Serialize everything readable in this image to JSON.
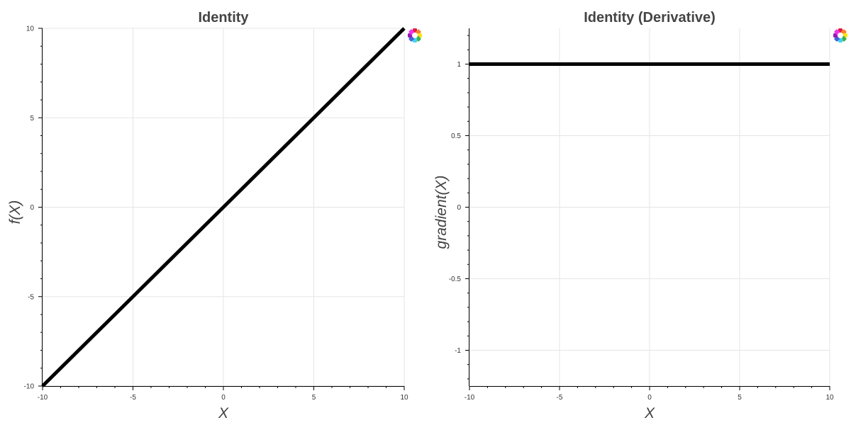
{
  "colors": {
    "series": "#000000",
    "grid": "#e5e5e5",
    "title": "#444444",
    "logo": [
      "#e6194b",
      "#f58231",
      "#ffe119",
      "#3cb44b",
      "#42d4f4",
      "#4363d8",
      "#911eb4",
      "#f032e6"
    ]
  },
  "toolbar_icon": "bokeh-logo-icon",
  "chart_data": [
    {
      "type": "line",
      "title": "Identity",
      "xlabel": "X",
      "ylabel": "f(X)",
      "xlim": [
        -10,
        10
      ],
      "ylim": [
        -10,
        10
      ],
      "x_ticks": [
        "-10",
        "-5",
        "0",
        "5",
        "10"
      ],
      "y_ticks": [
        "-10",
        "-5",
        "0",
        "5",
        "10"
      ],
      "x_tick_values": [
        -10,
        -5,
        0,
        5,
        10
      ],
      "y_tick_values": [
        -10,
        -5,
        0,
        5,
        10
      ],
      "grid": true,
      "series": [
        {
          "x": [
            -10,
            -5,
            0,
            5,
            10
          ],
          "y": [
            -10,
            -5,
            0,
            5,
            10
          ]
        }
      ]
    },
    {
      "type": "line",
      "title": "Identity (Derivative)",
      "xlabel": "X",
      "ylabel": "gradient(X)",
      "xlim": [
        -10,
        10
      ],
      "ylim": [
        -1.25,
        1.25
      ],
      "x_ticks": [
        "-10",
        "-5",
        "0",
        "5",
        "10"
      ],
      "y_ticks": [
        "-1",
        "-0.5",
        "0",
        "0.5",
        "1"
      ],
      "x_tick_values": [
        -10,
        -5,
        0,
        5,
        10
      ],
      "y_tick_values": [
        -1,
        -0.5,
        0,
        0.5,
        1
      ],
      "grid": true,
      "series": [
        {
          "x": [
            -10,
            10
          ],
          "y": [
            1,
            1
          ]
        }
      ]
    }
  ]
}
